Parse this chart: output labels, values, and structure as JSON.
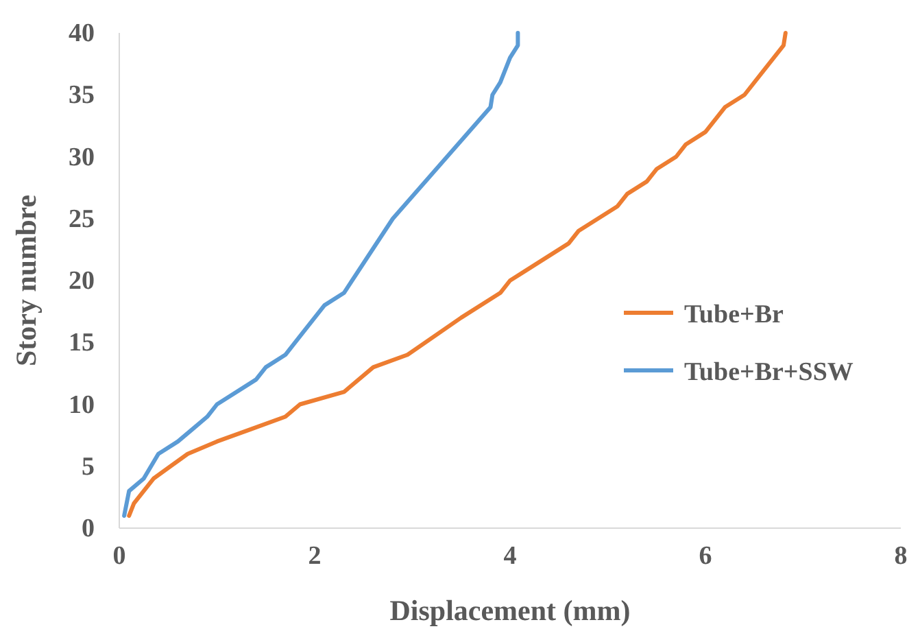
{
  "chart_data": {
    "type": "line",
    "xlabel": "Displacement (mm)",
    "ylabel": "Story numbre",
    "xlim": [
      0,
      8
    ],
    "xticks": [
      0,
      2,
      4,
      6,
      8
    ],
    "ylim": [
      0,
      40
    ],
    "yticks": [
      0,
      5,
      10,
      15,
      20,
      25,
      30,
      35,
      40
    ],
    "grid": false,
    "legend": "right",
    "marker": "none",
    "line_style": "solid",
    "series": [
      {
        "name": "Tube+Br",
        "color": "#ed7d31",
        "x": [
          0.1,
          0.15,
          0.35,
          0.7,
          1.0,
          1.35,
          1.7,
          1.85,
          2.3,
          2.6,
          2.95,
          3.5,
          3.9,
          4.0,
          4.6,
          4.7,
          5.1,
          5.2,
          5.4,
          5.5,
          5.7,
          5.8,
          6.0,
          6.2,
          6.4,
          6.6,
          6.8,
          6.82
        ],
        "values": [
          1,
          2,
          4,
          6,
          7,
          8,
          9,
          10,
          11,
          13,
          14,
          17,
          19,
          20,
          23,
          24,
          26,
          27,
          28,
          29,
          30,
          31,
          32,
          34,
          35,
          37,
          39,
          40
        ]
      },
      {
        "name": "Tube+Br+SSW",
        "color": "#5b9bd5",
        "x": [
          0.05,
          0.1,
          0.25,
          0.4,
          0.6,
          0.75,
          0.9,
          1.0,
          1.4,
          1.5,
          1.7,
          1.9,
          2.1,
          2.3,
          2.8,
          3.8,
          3.82,
          3.9,
          3.95,
          4.0,
          4.08,
          4.08
        ],
        "values": [
          1,
          3,
          4,
          6,
          7,
          8,
          9,
          10,
          12,
          13,
          14,
          16,
          18,
          19,
          25,
          34,
          35,
          36,
          37,
          38,
          39,
          40
        ]
      }
    ]
  }
}
